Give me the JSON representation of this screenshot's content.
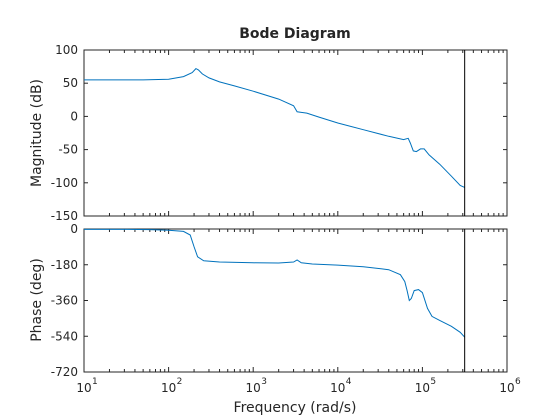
{
  "colors": {
    "curve": "#0072BD",
    "axis": "#262626",
    "marker": "#000000",
    "background": "#ffffff"
  },
  "chart_data": {
    "type": "line",
    "title": "Bode Diagram",
    "xlabel": "Frequency  (rad/s)",
    "x_scale": "log",
    "x_ticks": [
      {
        "base": "10",
        "exp": "1"
      },
      {
        "base": "10",
        "exp": "2"
      },
      {
        "base": "10",
        "exp": "3"
      },
      {
        "base": "10",
        "exp": "4"
      },
      {
        "base": "10",
        "exp": "5"
      },
      {
        "base": "10",
        "exp": "6"
      }
    ],
    "x_range": [
      10,
      1000000
    ],
    "vertical_marker_x": 316000,
    "magnitude": {
      "ylabel": "Magnitude (dB)",
      "ylim": [
        -150,
        100
      ],
      "yticks": [
        "100",
        "50",
        "0",
        "-50",
        "-100",
        "-150"
      ],
      "points": [
        [
          10,
          55
        ],
        [
          50,
          55
        ],
        [
          100,
          56
        ],
        [
          150,
          60
        ],
        [
          190,
          66
        ],
        [
          210,
          72
        ],
        [
          225,
          70
        ],
        [
          250,
          64
        ],
        [
          300,
          58
        ],
        [
          400,
          52
        ],
        [
          600,
          46
        ],
        [
          1000,
          38
        ],
        [
          2000,
          26
        ],
        [
          3000,
          16
        ],
        [
          3300,
          7
        ],
        [
          3700,
          6
        ],
        [
          4300,
          5
        ],
        [
          6000,
          -1
        ],
        [
          10000,
          -10
        ],
        [
          20000,
          -20
        ],
        [
          40000,
          -30
        ],
        [
          60000,
          -35
        ],
        [
          68000,
          -33
        ],
        [
          72000,
          -40
        ],
        [
          78000,
          -52
        ],
        [
          85000,
          -53
        ],
        [
          95000,
          -49
        ],
        [
          105000,
          -49
        ],
        [
          120000,
          -58
        ],
        [
          160000,
          -72
        ],
        [
          220000,
          -90
        ],
        [
          280000,
          -104
        ],
        [
          316000,
          -107
        ]
      ]
    },
    "phase": {
      "ylabel": "Phase (deg)",
      "ylim": [
        -720,
        0
      ],
      "yticks": [
        "0",
        "-180",
        "-360",
        "-540",
        "-720"
      ],
      "points": [
        [
          10,
          -2
        ],
        [
          30,
          -2
        ],
        [
          60,
          -3
        ],
        [
          100,
          -6
        ],
        [
          150,
          -12
        ],
        [
          180,
          -30
        ],
        [
          200,
          -90
        ],
        [
          220,
          -140
        ],
        [
          260,
          -160
        ],
        [
          400,
          -166
        ],
        [
          1000,
          -170
        ],
        [
          2000,
          -171
        ],
        [
          3000,
          -166
        ],
        [
          3300,
          -156
        ],
        [
          3700,
          -170
        ],
        [
          5000,
          -176
        ],
        [
          10000,
          -182
        ],
        [
          20000,
          -190
        ],
        [
          40000,
          -205
        ],
        [
          55000,
          -230
        ],
        [
          62000,
          -265
        ],
        [
          66000,
          -310
        ],
        [
          70000,
          -360
        ],
        [
          74000,
          -350
        ],
        [
          80000,
          -310
        ],
        [
          90000,
          -305
        ],
        [
          100000,
          -320
        ],
        [
          115000,
          -400
        ],
        [
          130000,
          -440
        ],
        [
          160000,
          -460
        ],
        [
          220000,
          -490
        ],
        [
          280000,
          -520
        ],
        [
          316000,
          -545
        ]
      ]
    }
  }
}
